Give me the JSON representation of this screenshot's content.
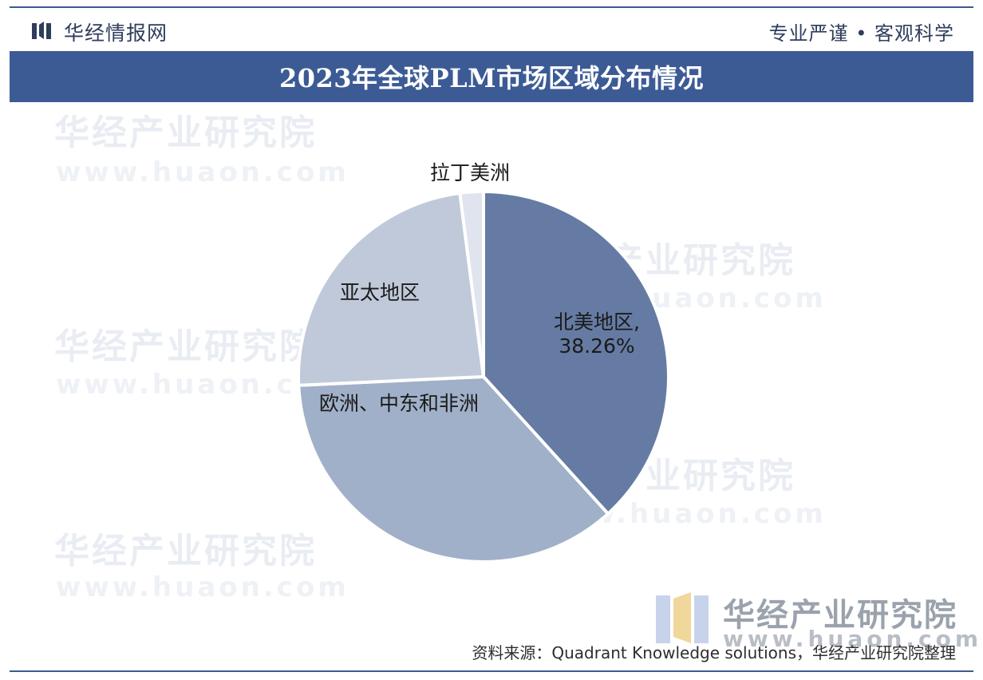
{
  "header": {
    "brand": "华经情报网",
    "slogan": "专业严谨 • 客观科学"
  },
  "chart_data": {
    "type": "pie",
    "title": "2023年全球PLM市场区域分布情况",
    "slices": [
      {
        "label": "北美地区",
        "value": 38.26,
        "value_label": "38.26%",
        "color": "#657ba3"
      },
      {
        "label": "欧洲、中东和非洲",
        "value": 36.0,
        "color": "#a1b0c9"
      },
      {
        "label": "亚太地区",
        "value": 23.7,
        "color": "#bfc9da"
      },
      {
        "label": "拉丁美洲",
        "value": 2.04,
        "color": "#dfe4ee"
      }
    ],
    "start_angle_deg": 0,
    "direction": "clockwise"
  },
  "watermark": {
    "text": "华经产业研究院",
    "url": "www.huaon.com"
  },
  "footer": {
    "source": "资料来源：Quadrant Knowledge solutions，华经产业研究院整理"
  },
  "colors": {
    "title_bar": "#3c5b95",
    "frame": "#3e5a8f",
    "text": "#2f3d5c"
  }
}
